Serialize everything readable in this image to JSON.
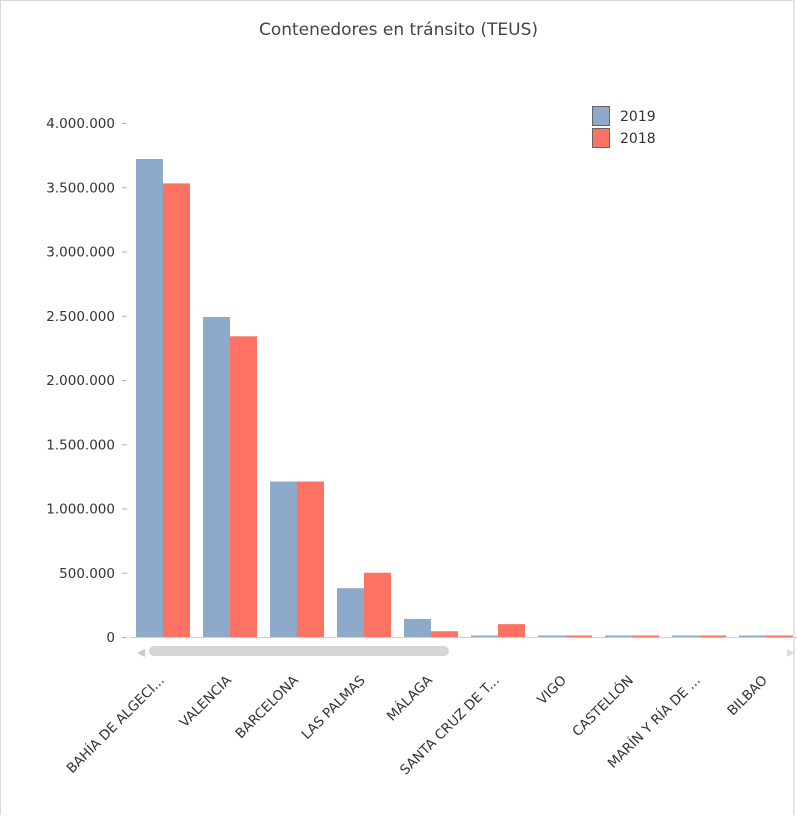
{
  "chart_data": {
    "type": "bar",
    "title": "Contenedores en tránsito (TEUS)",
    "categories": [
      "BAHÍA DE ALGECI...",
      "VALENCIA",
      "BARCELONA",
      "LAS PALMAS",
      "MÁLAGA",
      "SANTA CRUZ DE T...",
      "VIGO",
      "CASTELLÓN",
      "MARÍN Y RÍA DE ...",
      "BILBAO"
    ],
    "series": [
      {
        "name": "2019",
        "color": "#8eaacb",
        "values": [
          3720000,
          2490000,
          1210000,
          380000,
          140000,
          8000,
          5000,
          4000,
          3000,
          2000
        ]
      },
      {
        "name": "2018",
        "color": "#fd7262",
        "values": [
          3530000,
          2340000,
          1210000,
          500000,
          45000,
          100000,
          6000,
          5000,
          4000,
          3000
        ]
      }
    ],
    "yticks": [
      "0",
      "500.000",
      "1.000.000",
      "1.500.000",
      "2.000.000",
      "2.500.000",
      "3.000.000",
      "3.500.000",
      "4.000.000"
    ],
    "ylim": [
      0,
      4000000
    ],
    "legend_position": "top-right"
  }
}
